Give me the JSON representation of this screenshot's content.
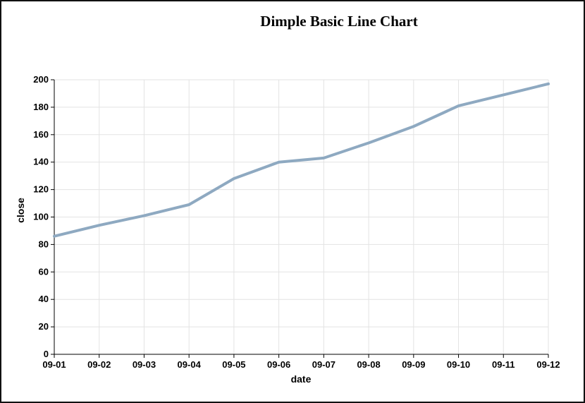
{
  "chart_data": {
    "type": "line",
    "title": "Dimple Basic Line Chart",
    "xlabel": "date",
    "ylabel": "close",
    "categories": [
      "09-01",
      "09-02",
      "09-03",
      "09-04",
      "09-05",
      "09-06",
      "09-07",
      "09-08",
      "09-09",
      "09-10",
      "09-11",
      "09-12"
    ],
    "values": [
      86,
      94,
      101,
      109,
      128,
      140,
      143,
      154,
      166,
      181,
      189,
      197
    ],
    "ylim": [
      0,
      200
    ],
    "yticks": [
      0,
      20,
      40,
      60,
      80,
      100,
      120,
      140,
      160,
      180,
      200
    ],
    "grid": true,
    "line_color": "#8ea9c1",
    "grid_color": "#e3e3e3",
    "axis_color": "#000000"
  }
}
